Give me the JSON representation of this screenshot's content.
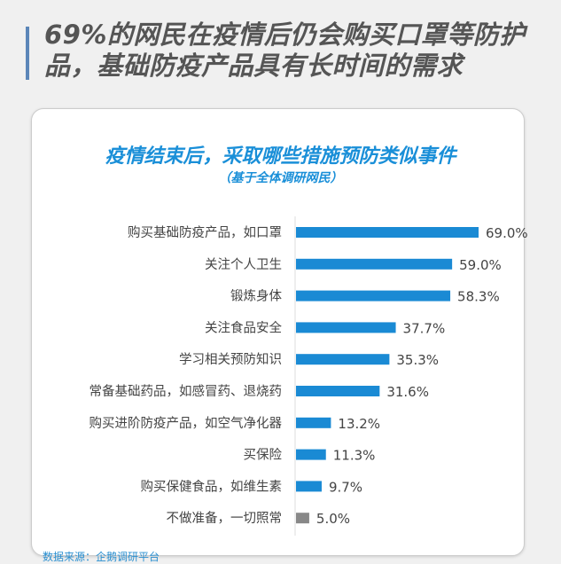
{
  "headline": "69%的网民在疫情后仍会购买口罩等防护品，基础防疫产品具有长时间的需求",
  "source": "数据来源：企鹅调研平台",
  "colors": {
    "bar": "#1a8ad4",
    "bar_last": "#888888",
    "title": "#1a8fd8"
  },
  "chart_data": {
    "type": "bar",
    "orientation": "horizontal",
    "title": "疫情结束后，采取哪些措施预防类似事件",
    "subtitle": "（基于全体调研网民）",
    "categories": [
      "购买基础防疫产品，如口罩",
      "关注个人卫生",
      "锻炼身体",
      "关注食品安全",
      "学习相关预防知识",
      "常备基础药品，如感冒药、退烧药",
      "购买进阶防疫产品，如空气净化器",
      "买保险",
      "购买保健食品，如维生素",
      "不做准备，一切照常"
    ],
    "values": [
      69.0,
      59.0,
      58.3,
      37.7,
      35.3,
      31.6,
      13.2,
      11.3,
      9.7,
      5.0
    ],
    "data_labels": [
      "69.0%",
      "59.0%",
      "58.3%",
      "37.7%",
      "35.3%",
      "31.6%",
      "13.2%",
      "11.3%",
      "9.7%",
      "5.0%"
    ],
    "unit": "%",
    "grid": false
  }
}
